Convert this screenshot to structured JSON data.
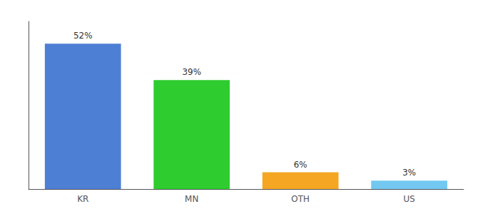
{
  "chart_data": {
    "type": "bar",
    "categories": [
      "KR",
      "MN",
      "OTH",
      "US"
    ],
    "values": [
      52,
      39,
      6,
      3
    ],
    "value_labels": [
      "52%",
      "39%",
      "6%",
      "3%"
    ],
    "colors": [
      "#4d7fd4",
      "#2ecc2e",
      "#f5a623",
      "#72c8f0"
    ],
    "ylim": [
      0,
      60
    ],
    "grid": false,
    "tick_labels": "x",
    "data_labels": true
  }
}
